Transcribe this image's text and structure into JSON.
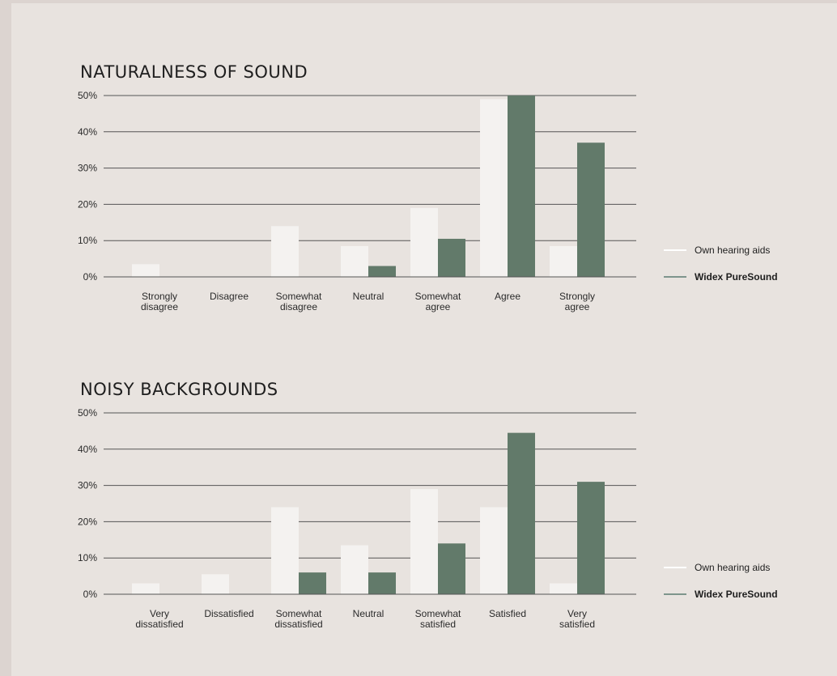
{
  "colors": {
    "own": "#f4f2f0",
    "widex": "#627a6a",
    "grid": "#555555",
    "legend_own": "#ffffff",
    "legend_widex": "#7e958c"
  },
  "legend": [
    {
      "name": "Own hearing aids",
      "key": "own",
      "bold": false
    },
    {
      "name": "Widex PureSound",
      "key": "widex",
      "bold": true
    }
  ],
  "chart_data": [
    {
      "type": "bar",
      "title": "NATURALNESS OF SOUND",
      "xlabel": "",
      "ylabel": "",
      "ylim": [
        0,
        50
      ],
      "yticks": [
        "0%",
        "10%",
        "20%",
        "30%",
        "40%",
        "50%"
      ],
      "grid": true,
      "legend_position": "right",
      "categories": [
        [
          "Strongly",
          "disagree"
        ],
        [
          "Disagree"
        ],
        [
          "Somewhat",
          "disagree"
        ],
        [
          "Neutral"
        ],
        [
          "Somewhat",
          "agree"
        ],
        [
          "Agree"
        ],
        [
          "Strongly",
          "agree"
        ]
      ],
      "series": [
        {
          "name": "Own hearing aids",
          "values": [
            3.5,
            0,
            14,
            8.5,
            19,
            49,
            8.5
          ]
        },
        {
          "name": "Widex PureSound",
          "values": [
            0,
            0,
            0,
            3,
            10.5,
            50,
            37
          ]
        }
      ]
    },
    {
      "type": "bar",
      "title": "NOISY BACKGROUNDS",
      "xlabel": "",
      "ylabel": "",
      "ylim": [
        0,
        50
      ],
      "yticks": [
        "0%",
        "10%",
        "20%",
        "30%",
        "40%",
        "50%"
      ],
      "grid": true,
      "legend_position": "right",
      "categories": [
        [
          "Very",
          "dissatisfied"
        ],
        [
          "Dissatisfied"
        ],
        [
          "Somewhat",
          "dissatisfied"
        ],
        [
          "Neutral"
        ],
        [
          "Somewhat",
          "satisfied"
        ],
        [
          "Satisfied"
        ],
        [
          "Very",
          "satisfied"
        ]
      ],
      "series": [
        {
          "name": "Own hearing aids",
          "values": [
            3,
            5.5,
            24,
            13.5,
            29,
            24,
            3
          ]
        },
        {
          "name": "Widex PureSound",
          "values": [
            0,
            0,
            6,
            6,
            14,
            44.5,
            31
          ]
        }
      ]
    }
  ]
}
